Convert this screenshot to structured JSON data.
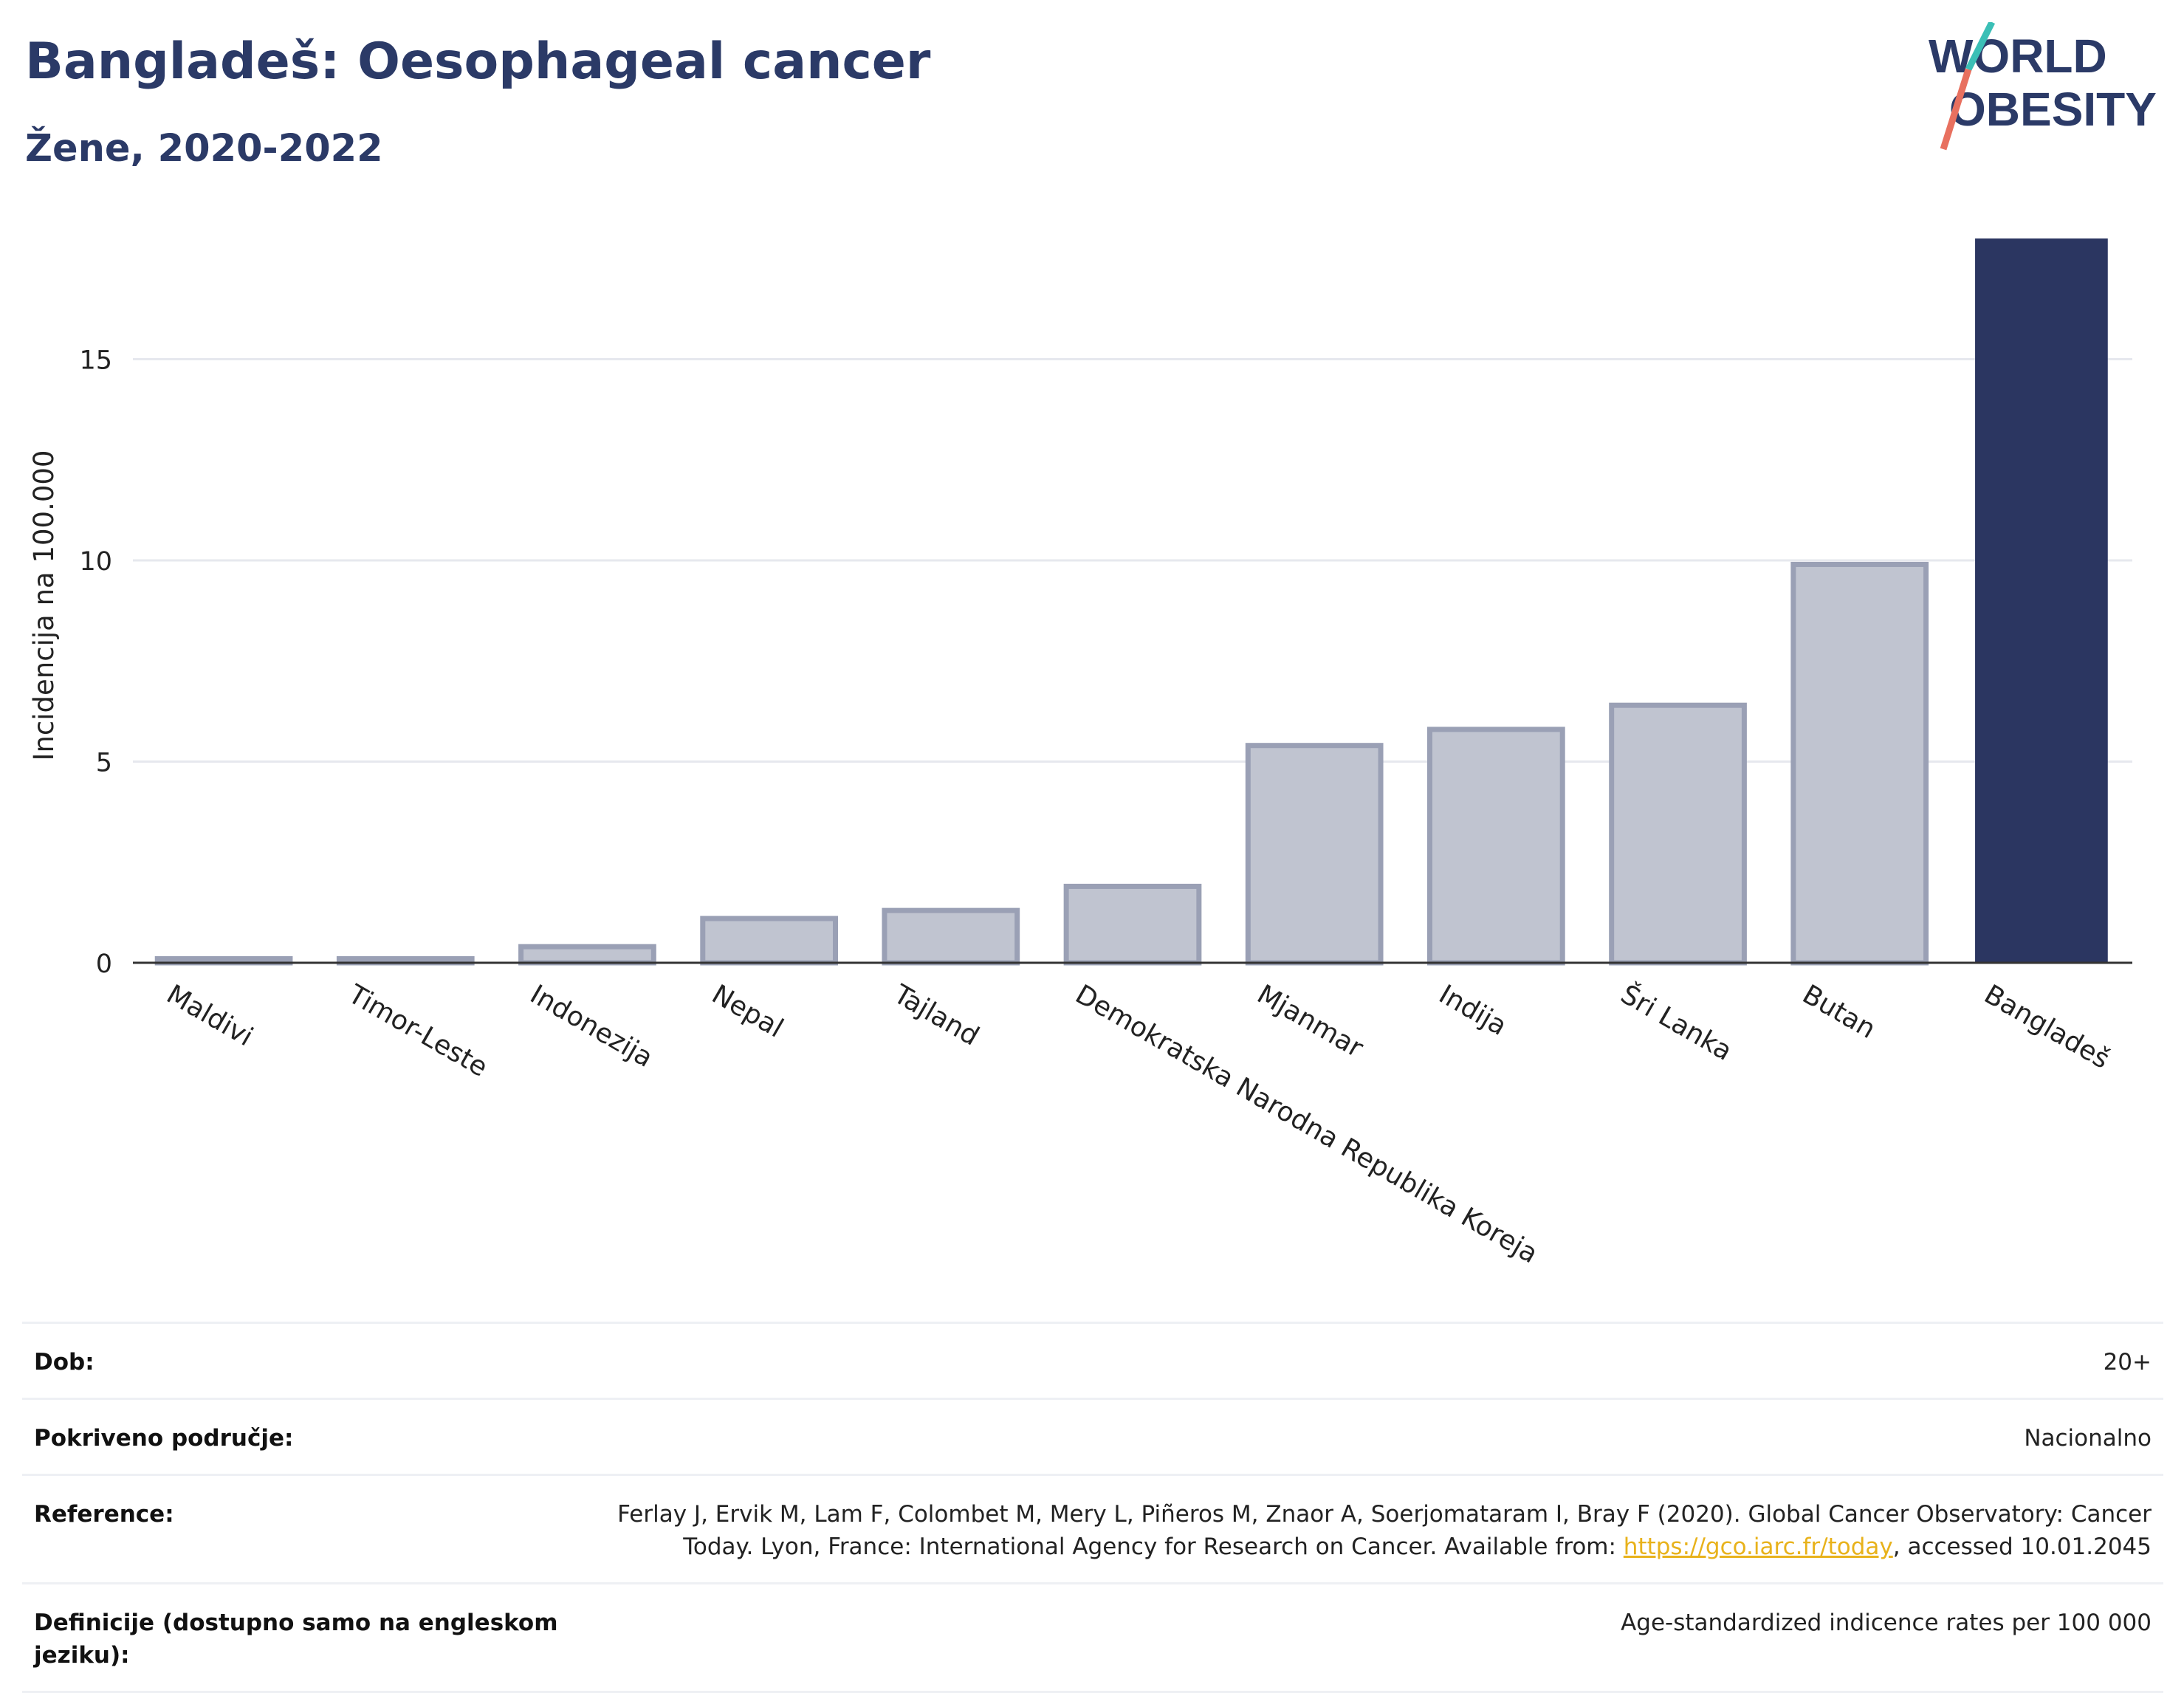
{
  "header": {
    "title": "Bangladeš: Oesophageal cancer",
    "subtitle": "Žene, 2020-2022"
  },
  "logo": {
    "line1": "WORLD",
    "line2": "OBESITY"
  },
  "chart_data": {
    "type": "bar",
    "title": "Bangladeš: Oesophageal cancer",
    "subtitle": "Žene, 2020-2022",
    "ylabel": "Incidencija na 100.000",
    "xlabel": "",
    "ylim": [
      0,
      18
    ],
    "yticks": [
      0,
      5,
      10,
      15
    ],
    "grid": true,
    "categories": [
      "Maldivi",
      "Timor-Leste",
      "Indonezija",
      "Nepal",
      "Tajland",
      "Demokratska Narodna Republika Koreja",
      "Mjanmar",
      "Indija",
      "Šri Lanka",
      "Butan",
      "Bangladeš"
    ],
    "values": [
      0.1,
      0.1,
      0.4,
      1.1,
      1.3,
      1.9,
      5.4,
      5.8,
      6.4,
      9.9,
      18.0
    ],
    "highlight": "Bangladeš",
    "colors": {
      "highlight": "#2b3661",
      "other_fill": "#c0c4d0",
      "other_stroke": "#9aa0b5"
    }
  },
  "info": {
    "age_label": "Dob:",
    "age_value": "20+",
    "coverage_label": "Pokriveno područje:",
    "coverage_value": "Nacionalno",
    "reference_label": "Reference:",
    "reference_line1": "Ferlay J, Ervik M, Lam F, Colombet M, Mery L, Piñeros M, Znaor A, Soerjomataram I, Bray F (2020). Global Cancer Observatory: Cancer",
    "reference_prefix": "Today. Lyon, France: International Agency for Research on Cancer. Available from: ",
    "reference_link": "https://gco.iarc.fr/today",
    "reference_suffix": ", accessed 10.01.2045",
    "definition_label": "Definicije (dostupno samo na engleskom jeziku):",
    "definition_value": "Age-standardized indicence rates per 100 000"
  }
}
